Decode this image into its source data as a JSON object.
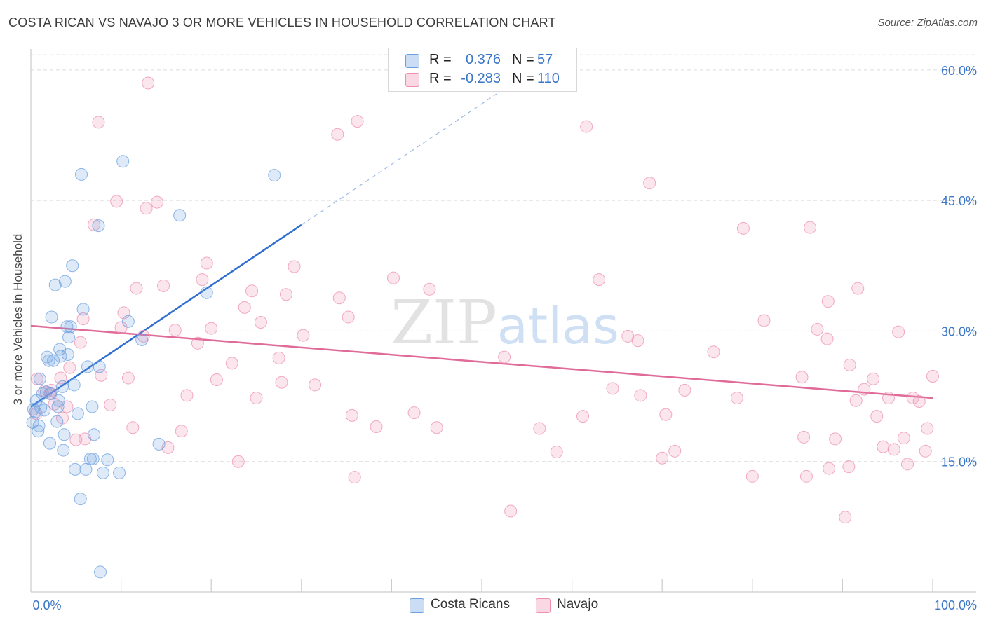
{
  "title": "COSTA RICAN VS NAVAJO 3 OR MORE VEHICLES IN HOUSEHOLD CORRELATION CHART",
  "source": "Source: ZipAtlas.com",
  "watermark": "ZIPatlas",
  "legend": {
    "rows": [
      {
        "r_label": "R =",
        "r_value": "0.376",
        "n_label": "N =",
        "n_value": "57",
        "color": "#6a9fe0"
      },
      {
        "r_label": "R =",
        "r_value": "-0.283",
        "n_label": "N =",
        "n_value": "110",
        "color": "#ee8fb0"
      }
    ]
  },
  "bottom_legend": [
    {
      "label": "Costa Ricans",
      "color": "#6a9fe0"
    },
    {
      "label": "Navajo",
      "color": "#ee8fb0"
    }
  ],
  "chart_data": {
    "type": "scatter",
    "title": "COSTA RICAN VS NAVAJO 3 OR MORE VEHICLES IN HOUSEHOLD CORRELATION CHART",
    "xlabel": "",
    "ylabel": "3 or more Vehicles in Household",
    "xlim": [
      0,
      100
    ],
    "ylim": [
      0,
      62
    ],
    "x_tick_labels": [
      "0.0%",
      "100.0%"
    ],
    "y_ticks": [
      15,
      30,
      45,
      60
    ],
    "y_tick_labels": [
      "15.0%",
      "30.0%",
      "45.0%",
      "60.0%"
    ],
    "grid": true,
    "legend_position": "top-center",
    "series": [
      {
        "name": "Costa Ricans",
        "color": "#6a9fe0",
        "trend": {
          "x": [
            0,
            30
          ],
          "y": [
            21.3,
            42.2
          ],
          "dashed_to": [
            52,
            57.5
          ]
        },
        "points": [
          [
            0.2,
            19.5
          ],
          [
            0.3,
            21
          ],
          [
            0.5,
            20.7
          ],
          [
            0.6,
            22
          ],
          [
            0.8,
            18.5
          ],
          [
            0.9,
            19.1
          ],
          [
            1,
            24.5
          ],
          [
            1.1,
            21.2
          ],
          [
            1.3,
            22.8
          ],
          [
            1.5,
            20.9
          ],
          [
            1.7,
            23
          ],
          [
            1.8,
            27
          ],
          [
            2,
            26.6
          ],
          [
            2.1,
            17.1
          ],
          [
            2.2,
            22.8
          ],
          [
            2.3,
            31.6
          ],
          [
            2.5,
            26.6
          ],
          [
            2.7,
            35.3
          ],
          [
            2.9,
            19.6
          ],
          [
            3,
            21.3
          ],
          [
            3.1,
            22
          ],
          [
            3.2,
            27.9
          ],
          [
            3.3,
            27.1
          ],
          [
            3.5,
            23.6
          ],
          [
            3.6,
            16.3
          ],
          [
            3.7,
            18.1
          ],
          [
            3.8,
            35.7
          ],
          [
            4,
            30.5
          ],
          [
            4.1,
            27.3
          ],
          [
            4.2,
            29.3
          ],
          [
            4.4,
            30.5
          ],
          [
            4.6,
            37.5
          ],
          [
            4.8,
            23.8
          ],
          [
            4.9,
            14.1
          ],
          [
            5.2,
            20.5
          ],
          [
            5.5,
            10.7
          ],
          [
            5.6,
            48
          ],
          [
            5.8,
            32.5
          ],
          [
            6.1,
            14.1
          ],
          [
            6.3,
            25.9
          ],
          [
            6.6,
            15.3
          ],
          [
            6.8,
            21.3
          ],
          [
            6.9,
            15.3
          ],
          [
            7,
            18.1
          ],
          [
            7.5,
            42.1
          ],
          [
            7.6,
            25.9
          ],
          [
            7.7,
            2.3
          ],
          [
            8,
            13.7
          ],
          [
            8.5,
            15.2
          ],
          [
            9.8,
            13.7
          ],
          [
            10.2,
            49.5
          ],
          [
            10.8,
            31.1
          ],
          [
            12.3,
            29
          ],
          [
            14.2,
            17
          ],
          [
            16.5,
            43.3
          ],
          [
            19.5,
            34.4
          ],
          [
            27,
            47.9
          ]
        ]
      },
      {
        "name": "Navajo",
        "color": "#ee8fb0",
        "trend": {
          "x": [
            0,
            100
          ],
          "y": [
            30.6,
            22.3
          ]
        },
        "points": [
          [
            0.6,
            20.5
          ],
          [
            0.7,
            24.5
          ],
          [
            1.5,
            23.1
          ],
          [
            2.1,
            22.8
          ],
          [
            2.3,
            23.2
          ],
          [
            2.6,
            21.6
          ],
          [
            3.3,
            24.6
          ],
          [
            3.5,
            20
          ],
          [
            4,
            21.3
          ],
          [
            4.3,
            25.8
          ],
          [
            5,
            17.5
          ],
          [
            5.5,
            28.7
          ],
          [
            5.8,
            31.4
          ],
          [
            6,
            17.6
          ],
          [
            7,
            42.2
          ],
          [
            7.5,
            54
          ],
          [
            7.8,
            24.9
          ],
          [
            8.8,
            21.5
          ],
          [
            9.5,
            44.9
          ],
          [
            10,
            30.4
          ],
          [
            10.3,
            32.1
          ],
          [
            10.8,
            24.6
          ],
          [
            11.3,
            18.9
          ],
          [
            11.7,
            34.9
          ],
          [
            12.5,
            29.4
          ],
          [
            12.8,
            44.1
          ],
          [
            13,
            58.5
          ],
          [
            14,
            44.8
          ],
          [
            14.7,
            35.2
          ],
          [
            15.2,
            16.6
          ],
          [
            16,
            30.1
          ],
          [
            16.7,
            18.5
          ],
          [
            17.3,
            22.6
          ],
          [
            18.5,
            28.6
          ],
          [
            19,
            35.9
          ],
          [
            19.5,
            37.8
          ],
          [
            20,
            30.3
          ],
          [
            20.6,
            24.4
          ],
          [
            22.3,
            26.3
          ],
          [
            23,
            15
          ],
          [
            23.7,
            32.7
          ],
          [
            24.5,
            34.6
          ],
          [
            25,
            22.3
          ],
          [
            25.5,
            31
          ],
          [
            27.5,
            26.9
          ],
          [
            27.8,
            24.1
          ],
          [
            28.3,
            34.2
          ],
          [
            29.2,
            37.4
          ],
          [
            30.2,
            29.5
          ],
          [
            31.5,
            23.8
          ],
          [
            34,
            52.6
          ],
          [
            34.2,
            33.8
          ],
          [
            35.2,
            31.6
          ],
          [
            35.6,
            20.3
          ],
          [
            35.9,
            13.2
          ],
          [
            36.2,
            54.1
          ],
          [
            38.3,
            19
          ],
          [
            40.2,
            36.1
          ],
          [
            42.5,
            20.6
          ],
          [
            44.2,
            34.8
          ],
          [
            45,
            18.9
          ],
          [
            52.5,
            27
          ],
          [
            53.2,
            9.3
          ],
          [
            56.4,
            18.8
          ],
          [
            58.3,
            16.1
          ],
          [
            61.2,
            20.2
          ],
          [
            61.6,
            53.5
          ],
          [
            63,
            35.9
          ],
          [
            64.5,
            23.4
          ],
          [
            66.2,
            29.4
          ],
          [
            67.3,
            28.9
          ],
          [
            67.6,
            22.6
          ],
          [
            68.6,
            47
          ],
          [
            70,
            15.4
          ],
          [
            70.4,
            20.4
          ],
          [
            71.4,
            16.2
          ],
          [
            72.5,
            23.2
          ],
          [
            75.7,
            27.6
          ],
          [
            78.3,
            22.3
          ],
          [
            79,
            41.8
          ],
          [
            80,
            13.3
          ],
          [
            81.3,
            31.2
          ],
          [
            85.5,
            24.7
          ],
          [
            85.7,
            17.8
          ],
          [
            86,
            13.3
          ],
          [
            86.4,
            41.9
          ],
          [
            87.2,
            30.2
          ],
          [
            88.3,
            29.1
          ],
          [
            88.5,
            14.2
          ],
          [
            89.2,
            17.6
          ],
          [
            90.3,
            8.6
          ],
          [
            90.7,
            14.4
          ],
          [
            90.8,
            26.1
          ],
          [
            91.5,
            22
          ],
          [
            92.4,
            23.3
          ],
          [
            93.4,
            24.5
          ],
          [
            93.8,
            20.2
          ],
          [
            94.5,
            16.7
          ],
          [
            95.1,
            22.3
          ],
          [
            95.7,
            16.4
          ],
          [
            96.2,
            29.9
          ],
          [
            96.8,
            17.7
          ],
          [
            97.2,
            14.7
          ],
          [
            97.8,
            22.3
          ],
          [
            98.5,
            21.9
          ],
          [
            99.2,
            16.2
          ],
          [
            99.4,
            18.8
          ],
          [
            100,
            24.8
          ],
          [
            88.4,
            33.4
          ],
          [
            91.7,
            34.9
          ]
        ]
      }
    ]
  }
}
